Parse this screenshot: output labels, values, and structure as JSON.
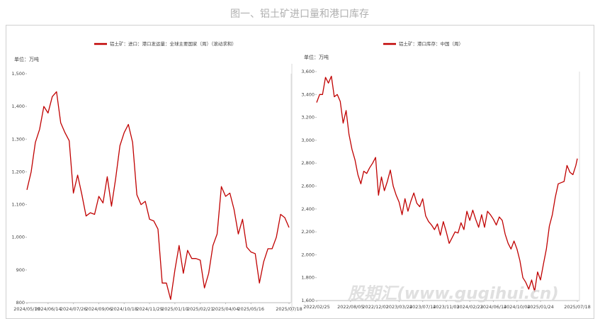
{
  "title": "图一、铝土矿进口量和港口库存",
  "watermark": "股期汇(www.gugihui.cn)",
  "chart_data": [
    {
      "type": "line",
      "y_label": "单位：万吨",
      "x": [
        "2024/05/10",
        "2024/05/17",
        "2024/05/24",
        "2024/05/31",
        "2024/06/07",
        "2024/06/14",
        "2024/06/21",
        "2024/06/28",
        "2024/07/05",
        "2024/07/12",
        "2024/07/19",
        "2024/07/26",
        "2024/08/02",
        "2024/08/09",
        "2024/08/16",
        "2024/08/23",
        "2024/08/30",
        "2024/09/06",
        "2024/09/13",
        "2024/09/20",
        "2024/09/27",
        "2024/10/04",
        "2024/10/11",
        "2024/10/18",
        "2024/10/25",
        "2024/11/01",
        "2024/11/08",
        "2024/11/15",
        "2024/11/22",
        "2024/11/29",
        "2024/12/06",
        "2024/12/13",
        "2024/12/20",
        "2024/12/27",
        "2025/01/03",
        "2025/01/10",
        "2025/01/17",
        "2025/01/24",
        "2025/01/31",
        "2025/02/07",
        "2025/02/14",
        "2025/02/21",
        "2025/02/28",
        "2025/03/07",
        "2025/03/14",
        "2025/03/21",
        "2025/03/28",
        "2025/04/04",
        "2025/04/11",
        "2025/04/18",
        "2025/04/25",
        "2025/05/02",
        "2025/05/09",
        "2025/05/16",
        "2025/05/23",
        "2025/05/30",
        "2025/06/06",
        "2025/06/13",
        "2025/06/20",
        "2025/06/27",
        "2025/07/04",
        "2025/07/11",
        "2025/07/18"
      ],
      "series": [
        {
          "name": "铝土矿：进口：港口发运量：全球主要国家（周）（滚动求和）",
          "color": "#c00000",
          "values": [
            1145,
            1200,
            1290,
            1330,
            1400,
            1380,
            1430,
            1445,
            1350,
            1320,
            1295,
            1135,
            1190,
            1130,
            1065,
            1075,
            1070,
            1125,
            1105,
            1185,
            1095,
            1180,
            1280,
            1320,
            1345,
            1290,
            1130,
            1100,
            1110,
            1055,
            1050,
            1025,
            860,
            860,
            810,
            900,
            975,
            890,
            960,
            935,
            935,
            930,
            845,
            890,
            975,
            1010,
            1155,
            1125,
            1135,
            1085,
            1010,
            1055,
            970,
            955,
            950,
            860,
            925,
            965,
            965,
            1000,
            1070,
            1060,
            1030
          ]
        }
      ],
      "ylim": [
        800,
        1500
      ],
      "yticks": [
        800,
        900,
        {
          "value": 1000,
          "label": "1,000"
        },
        {
          "value": 1100,
          "label": "1,100"
        },
        {
          "value": 1200,
          "label": "1,200"
        },
        {
          "value": 1300,
          "label": "1,300"
        },
        {
          "value": 1400,
          "label": "1,400"
        },
        {
          "value": 1500,
          "label": "1,500"
        }
      ],
      "xticks": [
        "2024/05/10",
        "2024/06/14",
        "2024/07/26",
        "2024/09/06",
        "2024/10/18",
        "2024/11/29",
        "2025/01/10",
        "2025/02/21",
        "2025/04/04",
        "2025/05/16",
        "2025/07/18"
      ]
    },
    {
      "type": "line",
      "y_label": "单位：万吨",
      "x": [
        "2022/02/25",
        "2022/03/11",
        "2022/03/25",
        "2022/04/08",
        "2022/04/22",
        "2022/05/06",
        "2022/05/20",
        "2022/06/03",
        "2022/06/17",
        "2022/07/01",
        "2022/07/15",
        "2022/07/29",
        "2022/08/12",
        "2022/08/26",
        "2022/09/09",
        "2022/09/23",
        "2022/10/07",
        "2022/10/21",
        "2022/11/04",
        "2022/11/18",
        "2022/12/02",
        "2022/12/16",
        "2022/12/30",
        "2023/01/13",
        "2023/01/27",
        "2023/02/10",
        "2023/02/24",
        "2023/03/10",
        "2023/03/24",
        "2023/04/07",
        "2023/04/21",
        "2023/05/05",
        "2023/05/19",
        "2023/06/02",
        "2023/06/16",
        "2023/06/30",
        "2023/07/14",
        "2023/07/28",
        "2023/08/11",
        "2023/08/25",
        "2023/09/08",
        "2023/09/22",
        "2023/10/06",
        "2023/10/20",
        "2023/11/03",
        "2023/11/17",
        "2023/12/01",
        "2023/12/15",
        "2023/12/29",
        "2024/01/12",
        "2024/01/26",
        "2024/02/09",
        "2024/02/23",
        "2024/03/08",
        "2024/03/22",
        "2024/04/05",
        "2024/04/19",
        "2024/05/03",
        "2024/05/17",
        "2024/05/31",
        "2024/06/14",
        "2024/06/28",
        "2024/07/12",
        "2024/07/26",
        "2024/08/09",
        "2024/08/23",
        "2024/09/06",
        "2024/09/20",
        "2024/10/04",
        "2024/10/18",
        "2024/11/01",
        "2024/11/15",
        "2024/11/29",
        "2024/12/13",
        "2024/12/27",
        "2025/01/10",
        "2025/01/24",
        "2025/02/07",
        "2025/02/21",
        "2025/03/07",
        "2025/03/21",
        "2025/04/04",
        "2025/04/18",
        "2025/05/02",
        "2025/05/16",
        "2025/05/30",
        "2025/06/13",
        "2025/06/27",
        "2025/07/11",
        "2025/07/18"
      ],
      "series": [
        {
          "name": "铝土矿：港口库存：中国（周）",
          "color": "#c00000",
          "values": [
            3330,
            3400,
            3400,
            3550,
            3500,
            3560,
            3380,
            3400,
            3340,
            3150,
            3260,
            3050,
            2920,
            2830,
            2700,
            2620,
            2730,
            2710,
            2760,
            2800,
            2850,
            2520,
            2680,
            2560,
            2640,
            2740,
            2600,
            2520,
            2460,
            2350,
            2490,
            2380,
            2470,
            2540,
            2450,
            2420,
            2490,
            2340,
            2290,
            2260,
            2220,
            2270,
            2170,
            2290,
            2200,
            2100,
            2150,
            2200,
            2190,
            2280,
            2220,
            2380,
            2300,
            2390,
            2310,
            2240,
            2350,
            2240,
            2380,
            2350,
            2310,
            2260,
            2330,
            2300,
            2180,
            2100,
            2050,
            2120,
            2050,
            1950,
            1800,
            1760,
            1700,
            1780,
            1680,
            1850,
            1780,
            1920,
            2050,
            2250,
            2350,
            2500,
            2620,
            2630,
            2640,
            2780,
            2720,
            2700,
            2780,
            2840
          ]
        }
      ],
      "ylim": [
        1600,
        3600
      ],
      "yticks": [
        {
          "value": 1600,
          "label": "1,600"
        },
        {
          "value": 1800,
          "label": "1,800"
        },
        {
          "value": 2000,
          "label": "2,000"
        },
        {
          "value": 2200,
          "label": "2,200"
        },
        {
          "value": 2400,
          "label": "2,400"
        },
        {
          "value": 2600,
          "label": "2,600"
        },
        {
          "value": 2800,
          "label": "2,800"
        },
        {
          "value": 3000,
          "label": "3,000"
        },
        {
          "value": 3200,
          "label": "3,200"
        },
        {
          "value": 3400,
          "label": "3,400"
        },
        {
          "value": 3600,
          "label": "3,600"
        }
      ],
      "xticks": [
        "2022/02/25",
        "2022/08/05",
        "2022/12/02",
        "2023/03/24",
        "2023/07/14",
        "2023/11/03",
        "2024/02/23",
        "2024/06/14",
        "2024/10/04",
        "2025/01/24",
        "2025/07/18"
      ]
    }
  ]
}
